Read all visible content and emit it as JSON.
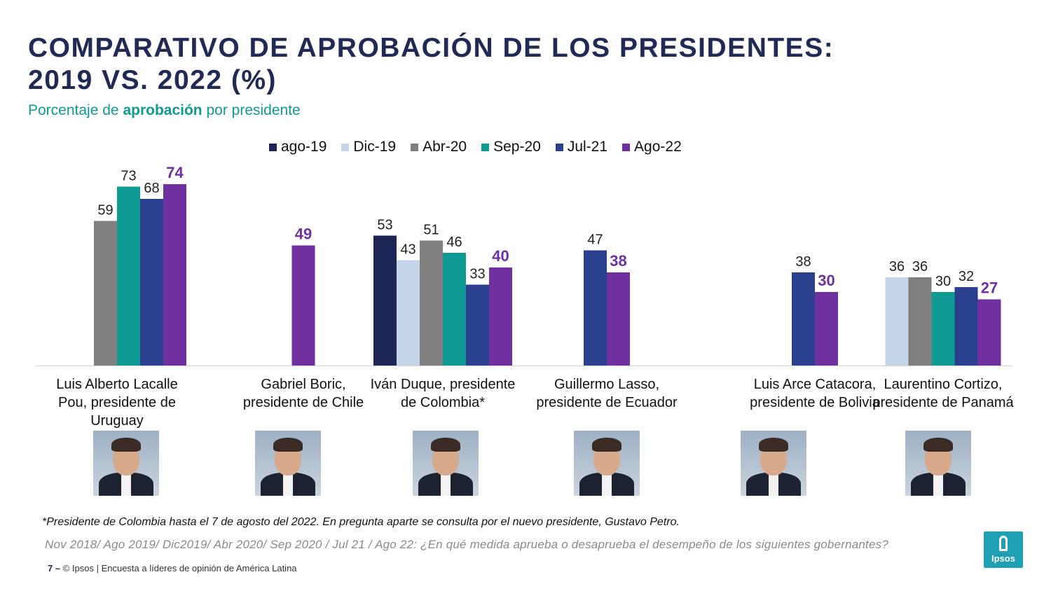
{
  "title_lines": [
    "COMPARATIVO DE APROBACIÓN DE LOS PRESIDENTES:",
    "2019 VS. 2022 (%)"
  ],
  "subtitle": {
    "pre": "Porcentaje de ",
    "bold": "aprobación",
    "post": " por presidente"
  },
  "colors": {
    "title": "#1f2a55",
    "subtitle": "#0f9a94",
    "highlight_value": "#7030a0"
  },
  "chart_data": {
    "type": "bar",
    "categories": [
      "Luis Alberto Lacalle Pou, presidente de Uruguay",
      "Gabriel Boric, presidente de Chile",
      "Iván Duque, presidente de Colombia*",
      "Guillermo Lasso, presidente de Ecuador",
      "Luis Arce Catacora, presidente de Bolivia",
      "Laurentino Cortizo, presidente de Panamá"
    ],
    "category_label_lines": [
      [
        "Luis Alberto Lacalle",
        "Pou, presidente de",
        "Uruguay"
      ],
      [
        "Gabriel Boric,",
        "presidente de Chile"
      ],
      [
        "Iván Duque, presidente",
        "de Colombia*"
      ],
      [
        "Guillermo Lasso,",
        "presidente de Ecuador"
      ],
      [
        "Luis Arce Catacora,",
        "presidente de Bolivia"
      ],
      [
        "Laurentino Cortizo,",
        "presidente de Panamá"
      ]
    ],
    "series": [
      {
        "name": "ago-19",
        "color": "#1c2556",
        "values": [
          null,
          null,
          53,
          null,
          null,
          null
        ]
      },
      {
        "name": "Dic-19",
        "color": "#c5d5ea",
        "values": [
          null,
          null,
          43,
          null,
          null,
          36
        ]
      },
      {
        "name": "Abr-20",
        "color": "#7f7f7f",
        "values": [
          59,
          null,
          51,
          null,
          null,
          36
        ]
      },
      {
        "name": "Sep-20",
        "color": "#0f9a94",
        "values": [
          73,
          null,
          46,
          null,
          null,
          30
        ]
      },
      {
        "name": "Jul-21",
        "color": "#2b3f8f",
        "values": [
          68,
          null,
          33,
          47,
          38,
          32
        ]
      },
      {
        "name": "Ago-22",
        "color": "#7030a0",
        "values": [
          74,
          49,
          40,
          38,
          30,
          27
        ]
      }
    ],
    "highlight_series": "Ago-22",
    "ylim": [
      0,
      80
    ],
    "legend_position": "top",
    "grid": false
  },
  "photos": [
    {
      "name": "Luis Lacalle Pou"
    },
    {
      "name": "Gabriel Boric"
    },
    {
      "name": "Iván Duque"
    },
    {
      "name": "Guillermo Lasso"
    },
    {
      "name": "Luis Arce"
    },
    {
      "name": "Laurentino Cortizo"
    }
  ],
  "footnote": "*Presidente de Colombia hasta el 7 de agosto del 2022. En pregunta aparte se consulta por el nuevo presidente, Gustavo Petro.",
  "question": "Nov 2018/ Ago 2019/ Dic2019/ Abr 2020/ Sep 2020 / Jul 21 / Ago 22: ¿En qué medida aprueba o desaprueba el desempeño de los siguientes gobernantes?",
  "footer": {
    "page": "7 –",
    "text": "© Ipsos | Encuesta a líderes de opinión de América Latina"
  },
  "logo_text": "Ipsos"
}
